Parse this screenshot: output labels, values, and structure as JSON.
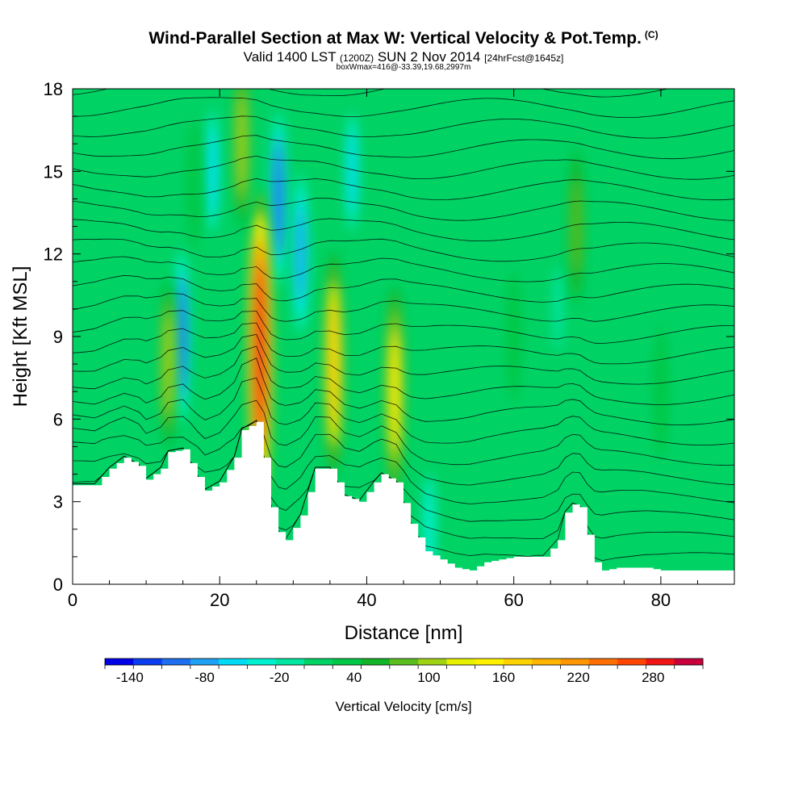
{
  "header": {
    "title": "Wind-Parallel Section at Max W: Vertical Velocity & Pot.Temp.",
    "title_mark": "(C)",
    "valid_prefix": "Valid 1400 LST",
    "valid_utc": "(1200Z)",
    "valid_date": "SUN 2 Nov 2014",
    "forecast": "[24hrFcst@1645z]",
    "box_info": "boxWmax=416@-33.39,19.68,2997m"
  },
  "chart_data": {
    "type": "heatmap",
    "title": "Wind-Parallel Section at Max W: Vertical Velocity & Pot.Temp.",
    "xlabel": "Distance [nm]",
    "ylabel": "Height [Kft MSL]",
    "xlim": [
      0,
      90
    ],
    "ylim": [
      0,
      18
    ],
    "xticks": [
      "0",
      "20",
      "40",
      "60",
      "80"
    ],
    "yticks": [
      "0",
      "3",
      "6",
      "9",
      "12",
      "15",
      "18"
    ],
    "colorbar": {
      "label": "Vertical Velocity [cm/s]",
      "tick_labels": [
        "-140",
        "-80",
        "-20",
        "40",
        "100",
        "160",
        "220",
        "280"
      ],
      "tick_values": [
        -140,
        -80,
        -20,
        40,
        100,
        160,
        220,
        280
      ],
      "min": -160,
      "max": 320,
      "colors": [
        "#0000e6",
        "#0a3cf0",
        "#1e6ef0",
        "#1ea0f5",
        "#00dcf5",
        "#00f0d2",
        "#00e6a0",
        "#00d264",
        "#00c846",
        "#14b428",
        "#5abe1e",
        "#a0d214",
        "#e6f000",
        "#fff000",
        "#ffd200",
        "#ffb400",
        "#ff9600",
        "#ff6e00",
        "#ff4600",
        "#f01414",
        "#c8003c"
      ]
    },
    "terrain_kft": {
      "x": [
        0,
        3,
        5,
        7,
        9,
        10,
        12,
        13,
        15,
        17,
        18,
        20,
        22,
        23,
        25,
        26,
        27,
        28,
        29,
        31,
        33,
        35,
        37,
        39,
        41,
        42,
        44,
        46,
        48,
        50,
        52,
        54,
        56,
        58,
        60,
        62,
        64,
        66,
        67,
        68,
        69,
        70,
        71,
        72,
        74,
        76,
        78,
        80,
        82,
        84,
        86,
        88,
        90
      ],
      "height": [
        3.6,
        3.6,
        4.2,
        4.6,
        4.3,
        3.8,
        4.2,
        4.8,
        4.9,
        3.9,
        3.4,
        3.7,
        4.6,
        5.6,
        5.9,
        4.6,
        2.8,
        1.9,
        1.6,
        2.5,
        4.2,
        4.2,
        3.2,
        3.0,
        3.7,
        4.0,
        3.7,
        2.2,
        1.2,
        0.9,
        0.6,
        0.5,
        0.8,
        0.9,
        1.0,
        1.0,
        1.0,
        1.6,
        2.6,
        2.9,
        2.8,
        1.8,
        0.8,
        0.5,
        0.6,
        0.6,
        0.6,
        0.5,
        0.5,
        0.5,
        0.5,
        0.5,
        0.5
      ]
    },
    "updraft_features": [
      {
        "x": 25.5,
        "y": 8.5,
        "w_cms": 280
      },
      {
        "x": 35.5,
        "y": 8.0,
        "w_cms": 160
      },
      {
        "x": 43.8,
        "y": 7.0,
        "w_cms": 140
      },
      {
        "x": 13.0,
        "y": 8.0,
        "w_cms": 100
      },
      {
        "x": 23.0,
        "y": 16.0,
        "w_cms": 100
      },
      {
        "x": 68.5,
        "y": 13.0,
        "w_cms": 80
      },
      {
        "x": 16.5,
        "y": 14.5,
        "w_cms": 40
      },
      {
        "x": 60.0,
        "y": 9.0,
        "w_cms": 40
      },
      {
        "x": 80.0,
        "y": 7.0,
        "w_cms": 40
      }
    ],
    "downdraft_features": [
      {
        "x": 14.8,
        "y": 9.0,
        "w_cms": -100
      },
      {
        "x": 28.0,
        "y": 14.0,
        "w_cms": -100
      },
      {
        "x": 31.0,
        "y": 12.0,
        "w_cms": -80
      },
      {
        "x": 19.0,
        "y": 15.0,
        "w_cms": -60
      },
      {
        "x": 38.0,
        "y": 15.0,
        "w_cms": -50
      },
      {
        "x": 48.5,
        "y": 2.0,
        "w_cms": -40
      },
      {
        "x": 66.0,
        "y": 10.0,
        "w_cms": -20
      }
    ]
  }
}
